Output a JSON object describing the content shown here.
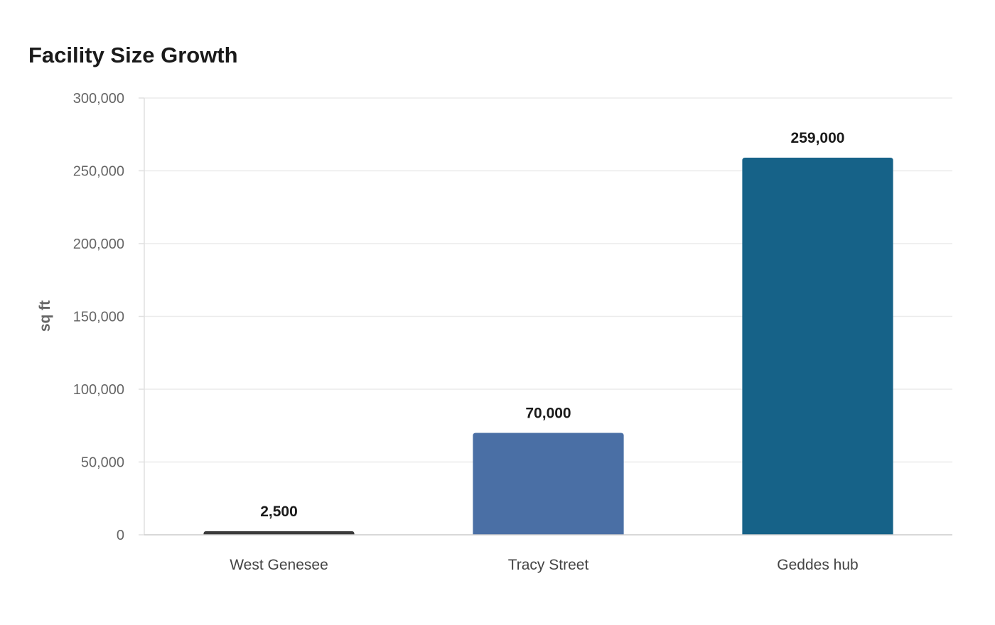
{
  "chart_data": {
    "type": "bar",
    "title": "Facility Size Growth",
    "xlabel": "",
    "ylabel": "sq ft",
    "categories": [
      "West Genesee",
      "Tracy Street",
      "Geddes hub"
    ],
    "values": [
      2500,
      70000,
      259000
    ],
    "value_labels": [
      "2,500",
      "70,000",
      "259,000"
    ],
    "bar_colors": [
      "#3a3a3a",
      "#4a6fa5",
      "#166288"
    ],
    "ylim": [
      0,
      300000
    ],
    "yticks": [
      0,
      50000,
      100000,
      150000,
      200000,
      250000,
      300000
    ],
    "ytick_labels": [
      "0",
      "50,000",
      "100,000",
      "150,000",
      "200,000",
      "250,000",
      "300,000"
    ],
    "grid": true,
    "legend": "none"
  }
}
